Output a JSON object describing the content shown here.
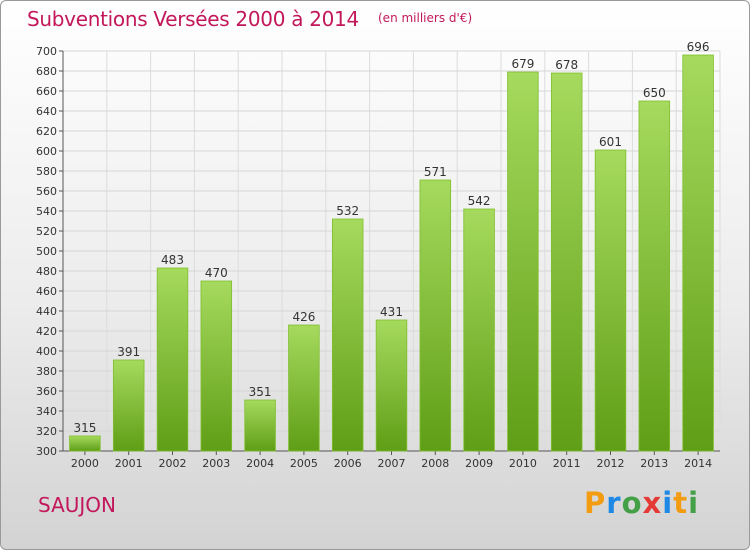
{
  "title": "Subventions Versées 2000 à 2014",
  "subtitle": "(en milliers d'€)",
  "place": "SAUJON",
  "logo": {
    "letters": [
      "P",
      "r",
      "o",
      "x",
      "i",
      "t",
      "i"
    ],
    "colors": [
      "#f39c12",
      "#1e88e5",
      "#43a047",
      "#e53935",
      "#1e88e5",
      "#f39c12",
      "#43a047"
    ]
  },
  "colors": {
    "title": "#c2185b",
    "bar_top": "#a6da5e",
    "bar_bottom": "#5f9e16"
  },
  "chart_data": {
    "type": "bar",
    "title": "Subventions Versées 2000 à 2014",
    "subtitle": "(en milliers d'€)",
    "categories": [
      "2000",
      "2001",
      "2002",
      "2003",
      "2004",
      "2005",
      "2006",
      "2007",
      "2008",
      "2009",
      "2010",
      "2011",
      "2012",
      "2013",
      "2014"
    ],
    "values": [
      315,
      391,
      483,
      470,
      351,
      426,
      532,
      431,
      571,
      542,
      679,
      678,
      601,
      650,
      696
    ],
    "ylim": [
      300,
      700
    ],
    "yticks": [
      300,
      320,
      340,
      360,
      380,
      400,
      420,
      440,
      460,
      480,
      500,
      520,
      540,
      560,
      580,
      600,
      620,
      640,
      660,
      680,
      700
    ],
    "grid": true,
    "data_labels": true
  }
}
